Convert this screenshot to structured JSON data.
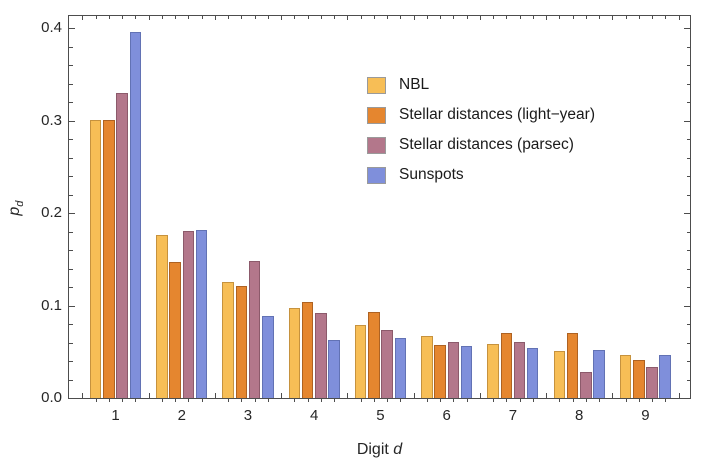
{
  "chart_data": {
    "type": "bar",
    "title": "",
    "xlabel": {
      "text": "Digit",
      "var": "d"
    },
    "ylabel": {
      "base": "p",
      "sub": "d"
    },
    "categories": [
      "1",
      "2",
      "3",
      "4",
      "5",
      "6",
      "7",
      "8",
      "9"
    ],
    "series": [
      {
        "name": "NBL",
        "color": "#F7BE56",
        "edge_color": "#C6923E",
        "values": [
          0.301,
          0.176,
          0.125,
          0.097,
          0.079,
          0.067,
          0.058,
          0.051,
          0.046
        ]
      },
      {
        "name": "Stellar distances (light−year)",
        "color": "#E5862F",
        "edge_color": "#AE6222",
        "values": [
          0.3,
          0.147,
          0.121,
          0.104,
          0.093,
          0.057,
          0.07,
          0.07,
          0.041
        ]
      },
      {
        "name": "Stellar distances (parsec)",
        "color": "#B3778B",
        "edge_color": "#8C5A6B",
        "values": [
          0.33,
          0.181,
          0.148,
          0.092,
          0.074,
          0.06,
          0.061,
          0.028,
          0.034
        ]
      },
      {
        "name": "Sunspots",
        "color": "#7F8FDB",
        "edge_color": "#6272B4",
        "values": [
          0.396,
          0.182,
          0.089,
          0.063,
          0.065,
          0.056,
          0.054,
          0.052,
          0.047
        ]
      }
    ],
    "yticks": [
      "0.0",
      "0.1",
      "0.2",
      "0.3",
      "0.4"
    ],
    "ytick_values": [
      0.0,
      0.1,
      0.2,
      0.3,
      0.4
    ],
    "ylim": [
      0,
      0.415
    ],
    "grid": false,
    "frame": true,
    "legend_position": "upper-right-inside",
    "frame_color": "#4d4d4d"
  }
}
